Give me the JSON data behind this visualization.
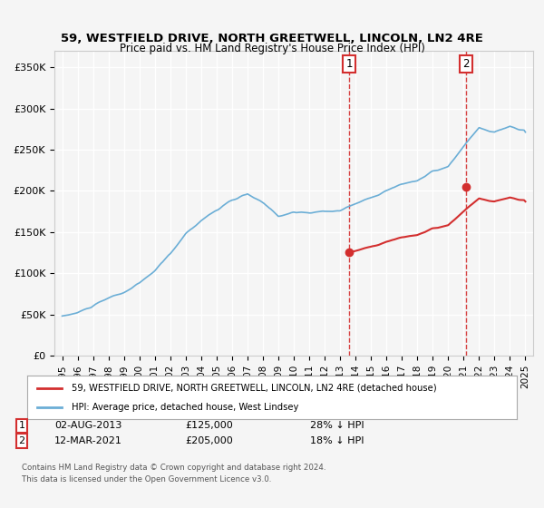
{
  "title": "59, WESTFIELD DRIVE, NORTH GREETWELL, LINCOLN, LN2 4RE",
  "subtitle": "Price paid vs. HM Land Registry's House Price Index (HPI)",
  "sale1_price": 125000,
  "sale1_pct": "28% ↓ HPI",
  "sale1_date_str": "02-AUG-2013",
  "sale2_price": 205000,
  "sale2_pct": "18% ↓ HPI",
  "sale2_date_str": "12-MAR-2021",
  "hpi_color": "#6baed6",
  "price_color": "#d32f2f",
  "vline_color": "#d32f2f",
  "dot_color": "#d32f2f",
  "legend_label_price": "59, WESTFIELD DRIVE, NORTH GREETWELL, LINCOLN, LN2 4RE (detached house)",
  "legend_label_hpi": "HPI: Average price, detached house, West Lindsey",
  "footer": "Contains HM Land Registry data © Crown copyright and database right 2024.\nThis data is licensed under the Open Government Licence v3.0.",
  "ylim": [
    0,
    370000
  ],
  "yticks": [
    0,
    50000,
    100000,
    150000,
    200000,
    250000,
    300000,
    350000
  ],
  "ytick_labels": [
    "£0",
    "£50K",
    "£100K",
    "£150K",
    "£200K",
    "£250K",
    "£300K",
    "£350K"
  ],
  "background_color": "#f5f5f5",
  "hpi_anchors_x": [
    1995.0,
    1996.0,
    1997.0,
    1998.0,
    1999.0,
    2000.0,
    2001.0,
    2002.0,
    2003.0,
    2004.0,
    2005.0,
    2006.0,
    2007.0,
    2008.0,
    2009.0,
    2010.0,
    2011.0,
    2012.0,
    2013.0,
    2014.0,
    2015.0,
    2016.0,
    2017.0,
    2018.0,
    2019.0,
    2020.0,
    2021.0,
    2022.0,
    2023.0,
    2024.0,
    2025.0
  ],
  "hpi_anchors_y": [
    48000,
    52000,
    60000,
    68000,
    75000,
    85000,
    100000,
    120000,
    145000,
    162000,
    175000,
    185000,
    192000,
    180000,
    165000,
    170000,
    168000,
    170000,
    172000,
    180000,
    188000,
    198000,
    205000,
    210000,
    220000,
    225000,
    248000,
    270000,
    265000,
    270000,
    265000
  ],
  "sale1_year": 2013.583,
  "sale2_year": 2021.167,
  "x_start": 1995.0,
  "x_end": 2025.0,
  "xlim_left": 1994.5,
  "xlim_right": 2025.5,
  "xticks": [
    1995,
    1996,
    1997,
    1998,
    1999,
    2000,
    2001,
    2002,
    2003,
    2004,
    2005,
    2006,
    2007,
    2008,
    2009,
    2010,
    2011,
    2012,
    2013,
    2014,
    2015,
    2016,
    2017,
    2018,
    2019,
    2020,
    2021,
    2022,
    2023,
    2024,
    2025
  ]
}
